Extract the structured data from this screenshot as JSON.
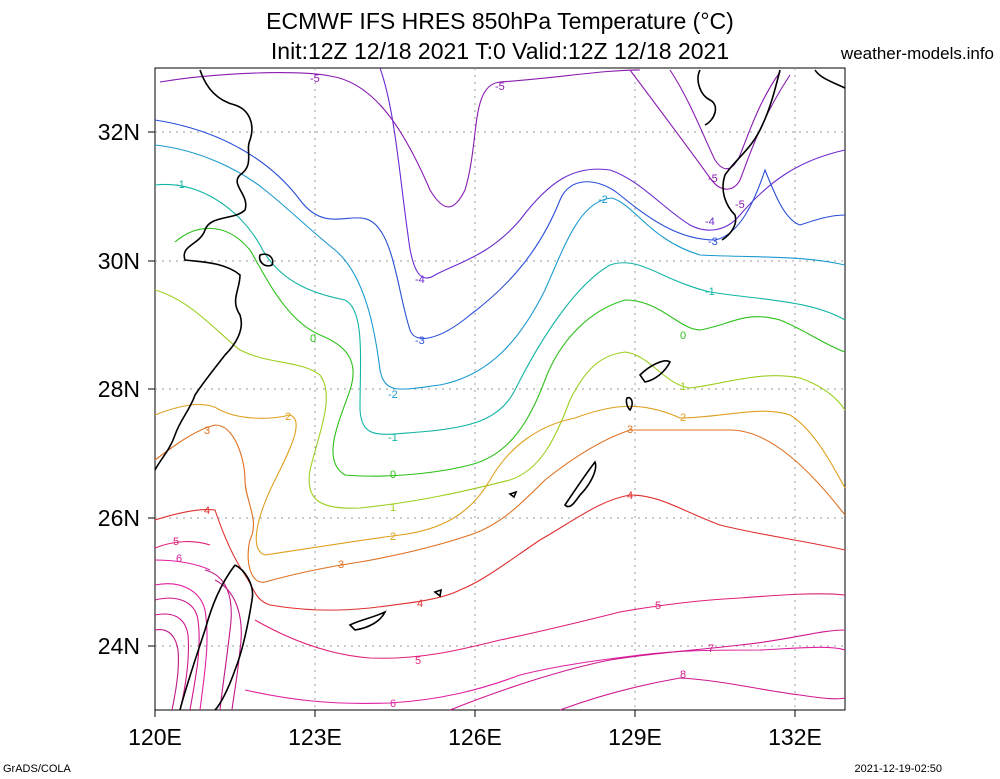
{
  "header": {
    "title_line1": "ECMWF IFS HRES 850hPa Temperature (°C)",
    "title_line2": "Init:12Z 12/18 2021 T:0 Valid:12Z 12/18 2021",
    "site": "weather-models.info"
  },
  "footer": {
    "left": "GrADS/COLA",
    "right": "2021-12-19-02:50"
  },
  "axes": {
    "x_ticks": [
      "120E",
      "123E",
      "126E",
      "129E",
      "132E"
    ],
    "y_ticks": [
      "32N",
      "30N",
      "28N",
      "26N",
      "24N"
    ]
  },
  "map": {
    "field": "850hPa Temperature",
    "unit": "°C",
    "grid": "dotted",
    "contour_labels": [
      {
        "value": "-5",
        "color": "#8a1ab0"
      },
      {
        "value": "-5",
        "color": "#8a1ab0"
      },
      {
        "value": "-5",
        "color": "#8a1ab0"
      },
      {
        "value": "-5",
        "color": "#8a1ab0"
      },
      {
        "value": "-4",
        "color": "#6a2bd0"
      },
      {
        "value": "-4",
        "color": "#6a2bd0"
      },
      {
        "value": "-3",
        "color": "#2a4fd8"
      },
      {
        "value": "-3",
        "color": "#2a4fd8"
      },
      {
        "value": "-2",
        "color": "#1a9ad0"
      },
      {
        "value": "-2",
        "color": "#1a9ad0"
      },
      {
        "value": "-1",
        "color": "#13b5a5"
      },
      {
        "value": "-1",
        "color": "#13b5a5"
      },
      {
        "value": "-1",
        "color": "#13b5a5"
      },
      {
        "value": "0",
        "color": "#2bc018"
      },
      {
        "value": "0",
        "color": "#2bc018"
      },
      {
        "value": "0",
        "color": "#2bc018"
      },
      {
        "value": "1",
        "color": "#9ccf20"
      },
      {
        "value": "1",
        "color": "#9ccf20"
      },
      {
        "value": "2",
        "color": "#e0a020"
      },
      {
        "value": "2",
        "color": "#e0a020"
      },
      {
        "value": "2",
        "color": "#e0a020"
      },
      {
        "value": "3",
        "color": "#e07020"
      },
      {
        "value": "3",
        "color": "#e07020"
      },
      {
        "value": "3",
        "color": "#e07020"
      },
      {
        "value": "4",
        "color": "#e03030"
      },
      {
        "value": "4",
        "color": "#e03030"
      },
      {
        "value": "4",
        "color": "#e03030"
      },
      {
        "value": "5",
        "color": "#e0207a"
      },
      {
        "value": "5",
        "color": "#e0207a"
      },
      {
        "value": "5",
        "color": "#e0207a"
      },
      {
        "value": "6",
        "color": "#e020a0"
      },
      {
        "value": "6",
        "color": "#e020a0"
      },
      {
        "value": "7",
        "color": "#d01890"
      },
      {
        "value": "8",
        "color": "#d01890"
      }
    ]
  }
}
